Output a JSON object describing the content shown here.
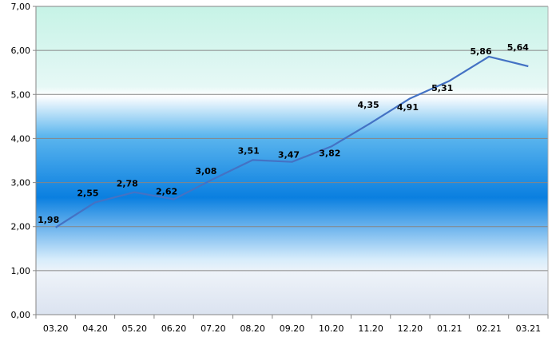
{
  "chart_data": {
    "type": "line",
    "categories": [
      "03.20",
      "04.20",
      "05.20",
      "06.20",
      "07.20",
      "08.20",
      "09.20",
      "10.20",
      "11.20",
      "12.20",
      "01.21",
      "02.21",
      "03.21"
    ],
    "series": [
      {
        "values": [
          1.98,
          2.55,
          2.78,
          2.62,
          3.08,
          3.51,
          3.47,
          3.82,
          4.35,
          4.91,
          5.31,
          5.86,
          5.64
        ]
      }
    ],
    "data_labels": [
      "1,98",
      "2,55",
      "2,78",
      "2,62",
      "3,08",
      "3,51",
      "3,47",
      "3,82",
      "4,35",
      "4,91",
      "5,31",
      "5,86",
      "5,64"
    ],
    "y_ticks": [
      "0,00",
      "1,00",
      "2,00",
      "3,00",
      "4,00",
      "5,00",
      "6,00",
      "7,00"
    ],
    "ylim": [
      0,
      7
    ],
    "grid": true,
    "legend": "none",
    "colors": {
      "line": "#4472c4",
      "grid": "#868686",
      "band_top": "#c6f3e6",
      "band_mid": "#0a7fe0",
      "band_bottom": "#dbe3f0"
    }
  }
}
